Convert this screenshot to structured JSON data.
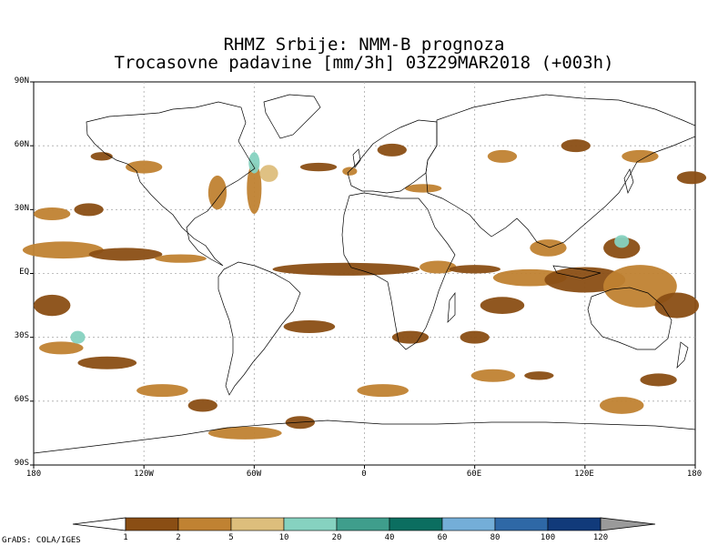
{
  "title": {
    "line1": "RHMZ Srbije: NMM-B prognoza",
    "line2": "Trocasovne padavine [mm/3h] 03Z29MAR2018 (+003h)"
  },
  "axes": {
    "lat_labels": [
      "90N",
      "60N",
      "30N",
      "EQ",
      "30S",
      "60S",
      "90S"
    ],
    "lat_values": [
      90,
      60,
      30,
      0,
      -30,
      -60,
      -90
    ],
    "lon_labels": [
      "180",
      "120W",
      "60W",
      "0",
      "60E",
      "120E",
      "180"
    ],
    "lon_values": [
      -180,
      -120,
      -60,
      0,
      60,
      120,
      180
    ]
  },
  "colorbar": {
    "levels": [
      "1",
      "2",
      "5",
      "10",
      "20",
      "40",
      "60",
      "80",
      "100",
      "120"
    ],
    "colors": [
      "#8a4e14",
      "#c08232",
      "#ddbe7c",
      "#86d2c0",
      "#3f9e8c",
      "#0b6e60",
      "#74aed8",
      "#2e68a6",
      "#113a7a"
    ],
    "under_color": "#ffffff",
    "over_color": "#9a9a9a"
  },
  "credit": "GrADS: COLA/IGES",
  "precip_areas": [
    {
      "lon": -164,
      "lat": 11,
      "rx": 22,
      "ry": 4,
      "level": 2
    },
    {
      "lon": -130,
      "lat": 9,
      "rx": 20,
      "ry": 3,
      "level": 1
    },
    {
      "lon": -100,
      "lat": 7,
      "rx": 14,
      "ry": 2,
      "level": 2
    },
    {
      "lon": -170,
      "lat": -15,
      "rx": 10,
      "ry": 5,
      "level": 1
    },
    {
      "lon": -165,
      "lat": -35,
      "rx": 12,
      "ry": 3,
      "level": 2
    },
    {
      "lon": -140,
      "lat": -42,
      "rx": 16,
      "ry": 3,
      "level": 1
    },
    {
      "lon": -110,
      "lat": -55,
      "rx": 14,
      "ry": 3,
      "level": 2
    },
    {
      "lon": -88,
      "lat": -62,
      "rx": 8,
      "ry": 3,
      "level": 1
    },
    {
      "lon": -120,
      "lat": 50,
      "rx": 10,
      "ry": 3,
      "level": 2
    },
    {
      "lon": -143,
      "lat": 55,
      "rx": 6,
      "ry": 2,
      "level": 1
    },
    {
      "lon": -80,
      "lat": 38,
      "rx": 5,
      "ry": 8,
      "level": 2
    },
    {
      "lon": -60,
      "lat": 40,
      "rx": 4,
      "ry": 12,
      "level": 2
    },
    {
      "lon": -52,
      "lat": 47,
      "rx": 5,
      "ry": 4,
      "level": 3
    },
    {
      "lon": -25,
      "lat": 50,
      "rx": 10,
      "ry": 2,
      "level": 1
    },
    {
      "lon": -8,
      "lat": 48,
      "rx": 4,
      "ry": 2,
      "level": 2
    },
    {
      "lon": 15,
      "lat": 58,
      "rx": 8,
      "ry": 3,
      "level": 1
    },
    {
      "lon": 32,
      "lat": 40,
      "rx": 10,
      "ry": 2,
      "level": 2
    },
    {
      "lon": -10,
      "lat": 2,
      "rx": 40,
      "ry": 3,
      "level": 1
    },
    {
      "lon": 40,
      "lat": 3,
      "rx": 10,
      "ry": 3,
      "level": 2
    },
    {
      "lon": 60,
      "lat": 2,
      "rx": 14,
      "ry": 2,
      "level": 1
    },
    {
      "lon": 90,
      "lat": -2,
      "rx": 20,
      "ry": 4,
      "level": 2
    },
    {
      "lon": 120,
      "lat": -3,
      "rx": 22,
      "ry": 6,
      "level": 1
    },
    {
      "lon": 150,
      "lat": -6,
      "rx": 20,
      "ry": 10,
      "level": 2
    },
    {
      "lon": 170,
      "lat": -15,
      "rx": 12,
      "ry": 6,
      "level": 1
    },
    {
      "lon": 100,
      "lat": 12,
      "rx": 10,
      "ry": 4,
      "level": 2
    },
    {
      "lon": 140,
      "lat": 12,
      "rx": 10,
      "ry": 5,
      "level": 1
    },
    {
      "lon": 75,
      "lat": -15,
      "rx": 12,
      "ry": 4,
      "level": 1
    },
    {
      "lon": 70,
      "lat": -48,
      "rx": 12,
      "ry": 3,
      "level": 2
    },
    {
      "lon": 95,
      "lat": -48,
      "rx": 8,
      "ry": 2,
      "level": 1
    },
    {
      "lon": 140,
      "lat": -62,
      "rx": 12,
      "ry": 4,
      "level": 2
    },
    {
      "lon": 160,
      "lat": -50,
      "rx": 10,
      "ry": 3,
      "level": 1
    },
    {
      "lon": 60,
      "lat": -30,
      "rx": 8,
      "ry": 3,
      "level": 1
    },
    {
      "lon": 25,
      "lat": -30,
      "rx": 10,
      "ry": 3,
      "level": 1
    },
    {
      "lon": 10,
      "lat": -55,
      "rx": 14,
      "ry": 3,
      "level": 2
    },
    {
      "lon": -65,
      "lat": -75,
      "rx": 20,
      "ry": 3,
      "level": 2
    },
    {
      "lon": -35,
      "lat": -70,
      "rx": 8,
      "ry": 3,
      "level": 1
    },
    {
      "lon": -30,
      "lat": -25,
      "rx": 14,
      "ry": 3,
      "level": 1
    },
    {
      "lon": 75,
      "lat": 55,
      "rx": 8,
      "ry": 3,
      "level": 2
    },
    {
      "lon": 115,
      "lat": 60,
      "rx": 8,
      "ry": 3,
      "level": 1
    },
    {
      "lon": 150,
      "lat": 55,
      "rx": 10,
      "ry": 3,
      "level": 2
    },
    {
      "lon": 178,
      "lat": 45,
      "rx": 8,
      "ry": 3,
      "level": 1
    },
    {
      "lon": -170,
      "lat": 28,
      "rx": 10,
      "ry": 3,
      "level": 2
    },
    {
      "lon": -150,
      "lat": 30,
      "rx": 8,
      "ry": 3,
      "level": 1
    },
    {
      "lon": -156,
      "lat": -30,
      "rx": 4,
      "ry": 3,
      "level": 4
    },
    {
      "lon": 140,
      "lat": 15,
      "rx": 4,
      "ry": 3,
      "level": 4
    },
    {
      "lon": -60,
      "lat": 52,
      "rx": 3,
      "ry": 5,
      "level": 4
    }
  ]
}
